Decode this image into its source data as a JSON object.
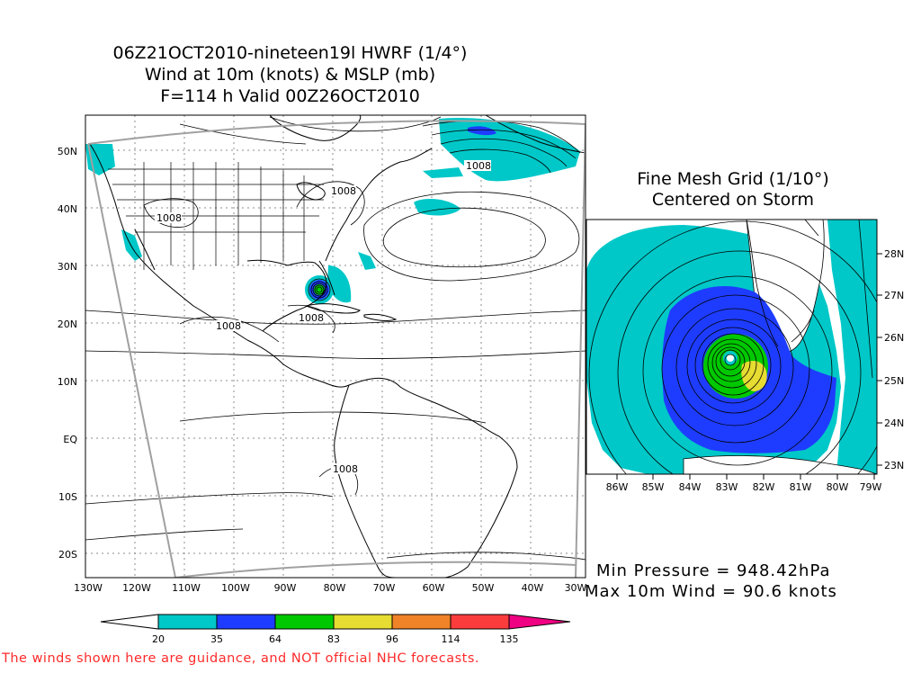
{
  "main_title": {
    "line1": "06Z21OCT2010-nineteen19l HWRF (1/4°)",
    "line2": "Wind at 10m (knots) & MSLP (mb)",
    "line3": "F=114 h Valid 00Z26OCT2010"
  },
  "fine_mesh": {
    "line1": "Fine Mesh Grid (1/10°)",
    "line2": "Centered on Storm"
  },
  "stats": {
    "min_pressure": "Min Pressure = 948.42hPa",
    "max_wind": "Max 10m Wind = 90.6 knots"
  },
  "disclaimer": "The winds shown here are guidance, and NOT official NHC forecasts.",
  "main_map": {
    "lon_labels": [
      "130W",
      "120W",
      "110W",
      "100W",
      "90W",
      "80W",
      "70W",
      "60W",
      "50W",
      "40W",
      "30W"
    ],
    "lat_labels": [
      "50N",
      "40N",
      "30N",
      "20N",
      "10N",
      "EQ",
      "10S",
      "20S"
    ],
    "isobar_labels": [
      "1008",
      "1008",
      "1008",
      "1008",
      "1008",
      "1008"
    ]
  },
  "inset_map": {
    "lon_labels": [
      "86W",
      "85W",
      "84W",
      "83W",
      "82W",
      "81W",
      "80W",
      "79W"
    ],
    "lat_labels": [
      "28N",
      "27N",
      "26N",
      "25N",
      "24N",
      "23N"
    ]
  },
  "legend": {
    "labels": [
      "20",
      "35",
      "64",
      "83",
      "96",
      "114",
      "135"
    ],
    "colors": {
      "c20": "#00c8c8",
      "c35": "#1e3cff",
      "c64": "#00c800",
      "c83": "#e6dc32",
      "c96": "#f08228",
      "c114": "#fa3c3c",
      "c135": "#f00082"
    }
  },
  "colors": {
    "disclaimer": "#ff2a2a",
    "domain_border": "#a0a0a0"
  }
}
